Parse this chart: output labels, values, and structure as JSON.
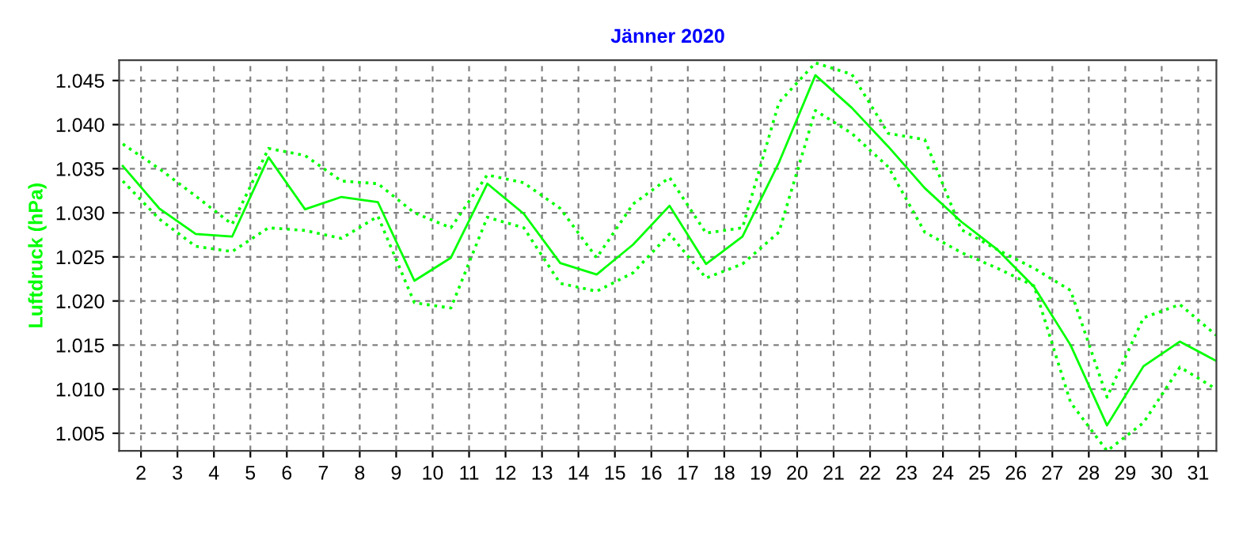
{
  "chart_data": {
    "type": "line",
    "title": "Jänner 2020",
    "ylabel": "Luftdruck (hPa)",
    "x": [
      1.5,
      2.5,
      3.5,
      4.5,
      5.5,
      6.5,
      7.5,
      8.5,
      9.5,
      10.5,
      11.5,
      12.5,
      13.5,
      14.5,
      15.5,
      16.5,
      17.5,
      18.5,
      19.5,
      20.5,
      21.5,
      22.5,
      23.5,
      24.5,
      25.5,
      26.5,
      27.5,
      28.5,
      29.5,
      30.5,
      31.5
    ],
    "series": [
      {
        "color": "#00ff00",
        "line_style": "solid",
        "values": [
          1.0353,
          1.0305,
          1.0276,
          1.0273,
          1.0363,
          1.0304,
          1.0318,
          1.0312,
          1.0223,
          1.0249,
          1.0333,
          1.0299,
          1.0243,
          1.023,
          1.0264,
          1.0308,
          1.0242,
          1.0273,
          1.0357,
          1.0456,
          1.0419,
          1.0375,
          1.0328,
          1.029,
          1.0258,
          1.0216,
          1.015,
          1.0059,
          1.0126,
          1.0154,
          1.0132
        ]
      },
      {
        "color": "#00ff00",
        "line_style": "dotted",
        "values": [
          1.0378,
          1.035,
          1.0319,
          1.0287,
          1.0373,
          1.0365,
          1.0336,
          1.0333,
          1.03,
          1.0283,
          1.0343,
          1.0334,
          1.0305,
          1.0249,
          1.031,
          1.034,
          1.0277,
          1.0283,
          1.0425,
          1.047,
          1.0457,
          1.039,
          1.0383,
          1.0281,
          1.0258,
          1.0237,
          1.0212,
          1.0091,
          1.0181,
          1.0196,
          1.0161
        ]
      },
      {
        "color": "#00ff00",
        "line_style": "dotted",
        "values": [
          1.0336,
          1.0293,
          1.0262,
          1.0256,
          1.0283,
          1.028,
          1.0271,
          1.0296,
          1.0198,
          1.0192,
          1.0295,
          1.0283,
          1.022,
          1.0211,
          1.0232,
          1.0276,
          1.0226,
          1.0242,
          1.0278,
          1.0416,
          1.039,
          1.0352,
          1.0278,
          1.0255,
          1.0237,
          1.0217,
          1.0085,
          1.003,
          1.0062,
          1.0125,
          1.01
        ]
      }
    ],
    "xlim": [
      1.4,
      31.5
    ],
    "xticks": [
      2,
      3,
      4,
      5,
      6,
      7,
      8,
      9,
      10,
      11,
      12,
      13,
      14,
      15,
      16,
      17,
      18,
      19,
      20,
      21,
      22,
      23,
      24,
      25,
      26,
      27,
      28,
      29,
      30,
      31
    ],
    "ylim": [
      1.003,
      1.0473
    ],
    "yticks": [
      {
        "value": 1.005,
        "label": "1.005"
      },
      {
        "value": 1.01,
        "label": "1.010"
      },
      {
        "value": 1.015,
        "label": "1.015"
      },
      {
        "value": 1.02,
        "label": "1.020"
      },
      {
        "value": 1.025,
        "label": "1.025"
      },
      {
        "value": 1.03,
        "label": "1.030"
      },
      {
        "value": 1.035,
        "label": "1.035"
      },
      {
        "value": 1.04,
        "label": "1.040"
      },
      {
        "value": 1.045,
        "label": "1.045"
      }
    ],
    "grid": true,
    "marker": "none"
  }
}
